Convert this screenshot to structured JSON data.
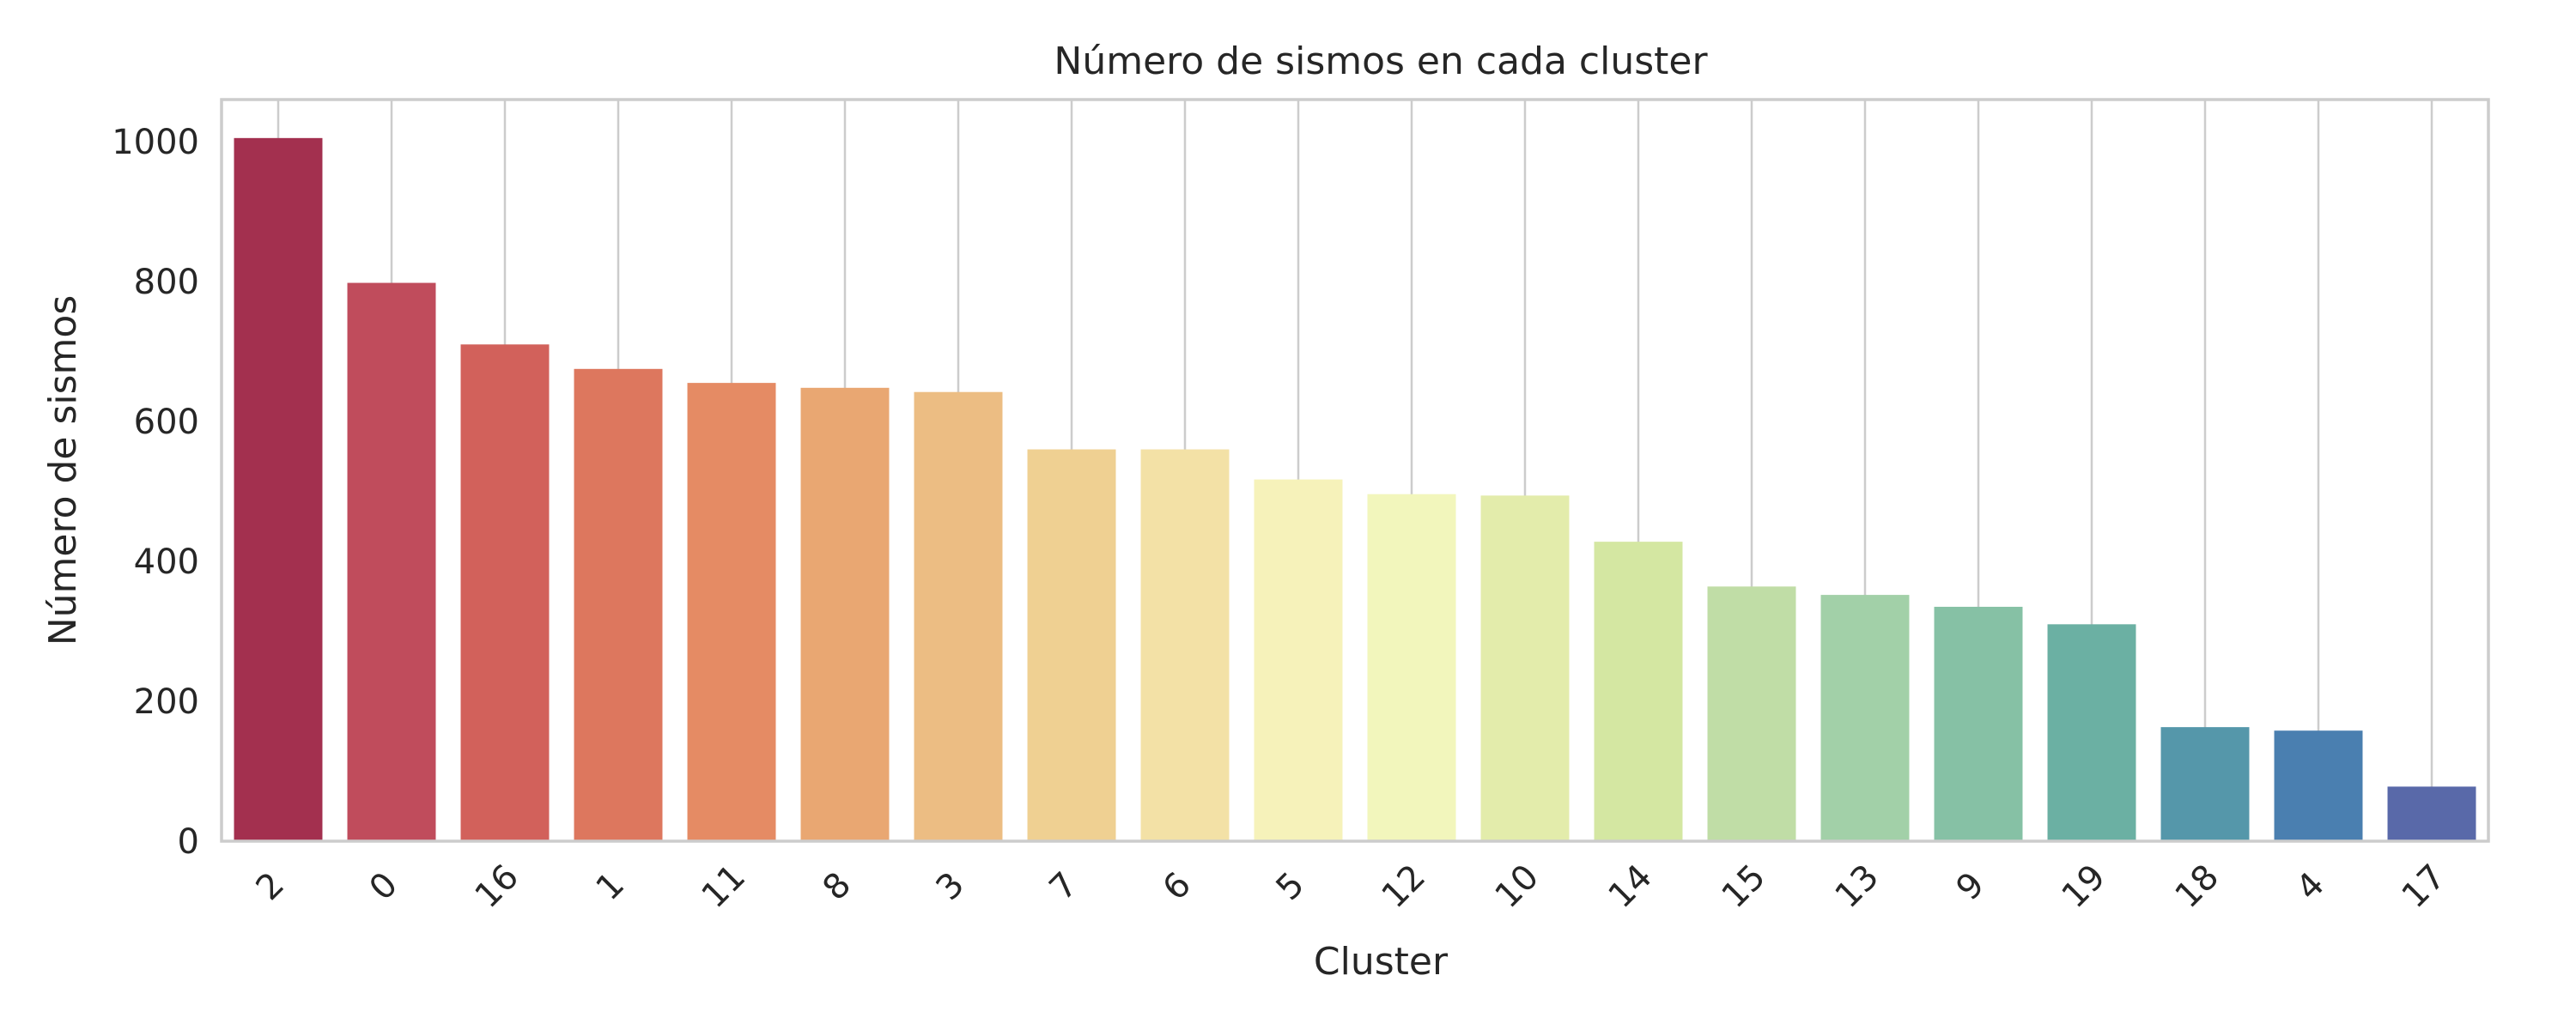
{
  "chart_data": {
    "type": "bar",
    "title": "Número de sismos en cada cluster",
    "xlabel": "Cluster",
    "ylabel": "Número de sismos",
    "categories": [
      "2",
      "0",
      "16",
      "1",
      "11",
      "8",
      "3",
      "7",
      "6",
      "5",
      "12",
      "10",
      "14",
      "15",
      "13",
      "9",
      "19",
      "18",
      "4",
      "17"
    ],
    "values": [
      1005,
      798,
      710,
      675,
      655,
      648,
      642,
      560,
      560,
      517,
      496,
      494,
      428,
      364,
      352,
      335,
      310,
      163,
      158,
      78
    ],
    "ylim": [
      0,
      1060
    ],
    "yticks": [
      0,
      200,
      400,
      600,
      800,
      1000
    ],
    "grid": "vertical",
    "colors": [
      "#a3304f",
      "#c04c5c",
      "#d2615b",
      "#dd775e",
      "#e58b64",
      "#e9a772",
      "#ecbd83",
      "#efd092",
      "#f3e1a6",
      "#f6f2ba",
      "#f2f6bc",
      "#e3ecab",
      "#d4e7a2",
      "#c0dda6",
      "#a2d0a8",
      "#86c1a5",
      "#6bb0a3",
      "#5597aa",
      "#4a7fb0",
      "#5969a9"
    ]
  }
}
